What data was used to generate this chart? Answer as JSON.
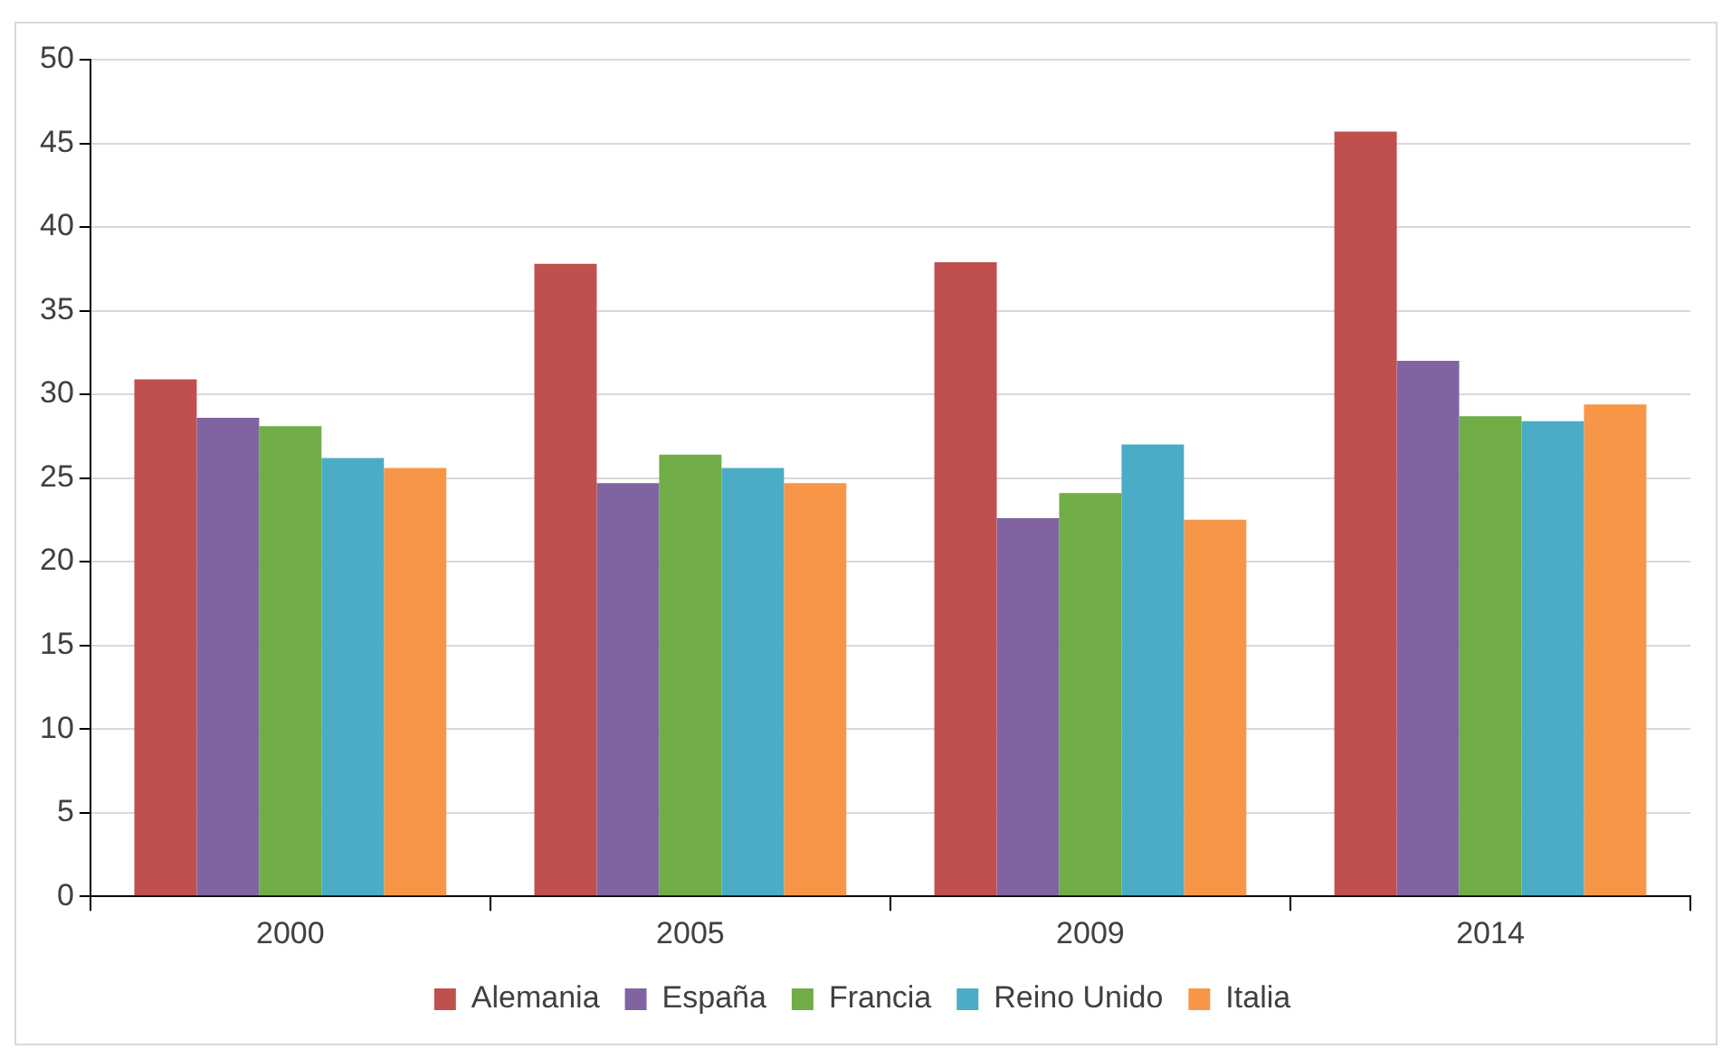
{
  "chart_data": {
    "type": "bar",
    "categories": [
      "2000",
      "2005",
      "2009",
      "2014"
    ],
    "series": [
      {
        "name": "Alemania",
        "color": "#c0504d",
        "values": [
          30.9,
          37.8,
          37.9,
          45.7
        ]
      },
      {
        "name": "España",
        "color": "#8064a2",
        "values": [
          28.6,
          24.7,
          22.6,
          32.0
        ]
      },
      {
        "name": "Francia",
        "color": "#70ad47",
        "values": [
          28.1,
          26.4,
          24.1,
          28.7
        ]
      },
      {
        "name": "Reino Unido",
        "color": "#4bacc6",
        "values": [
          26.2,
          25.6,
          27.0,
          28.4
        ]
      },
      {
        "name": "Italia",
        "color": "#f79646",
        "values": [
          25.6,
          24.7,
          22.5,
          29.4
        ]
      }
    ],
    "ylim": [
      0,
      50
    ],
    "yticks": [
      0,
      5,
      10,
      15,
      20,
      25,
      30,
      35,
      40,
      45,
      50
    ],
    "grid": "y",
    "legend": "bottom"
  }
}
